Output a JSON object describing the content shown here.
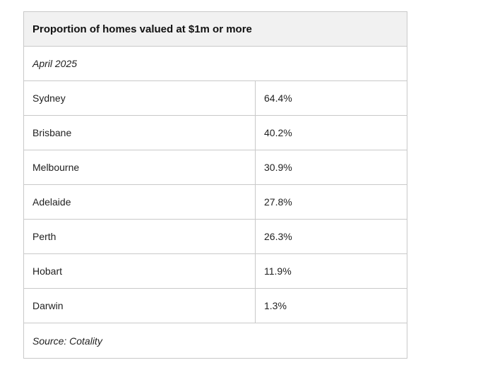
{
  "chart_data": {
    "type": "table",
    "title": "Proportion of homes valued at $1m or more",
    "subtitle": "April 2025",
    "source": "Source: Cotality",
    "rows": [
      {
        "city": "Sydney",
        "value": "64.4%"
      },
      {
        "city": "Brisbane",
        "value": "40.2%"
      },
      {
        "city": "Melbourne",
        "value": "30.9%"
      },
      {
        "city": "Adelaide",
        "value": "27.8%"
      },
      {
        "city": "Perth",
        "value": "26.3%"
      },
      {
        "city": "Hobart",
        "value": "11.9%"
      },
      {
        "city": "Darwin",
        "value": "1.3%"
      }
    ]
  }
}
